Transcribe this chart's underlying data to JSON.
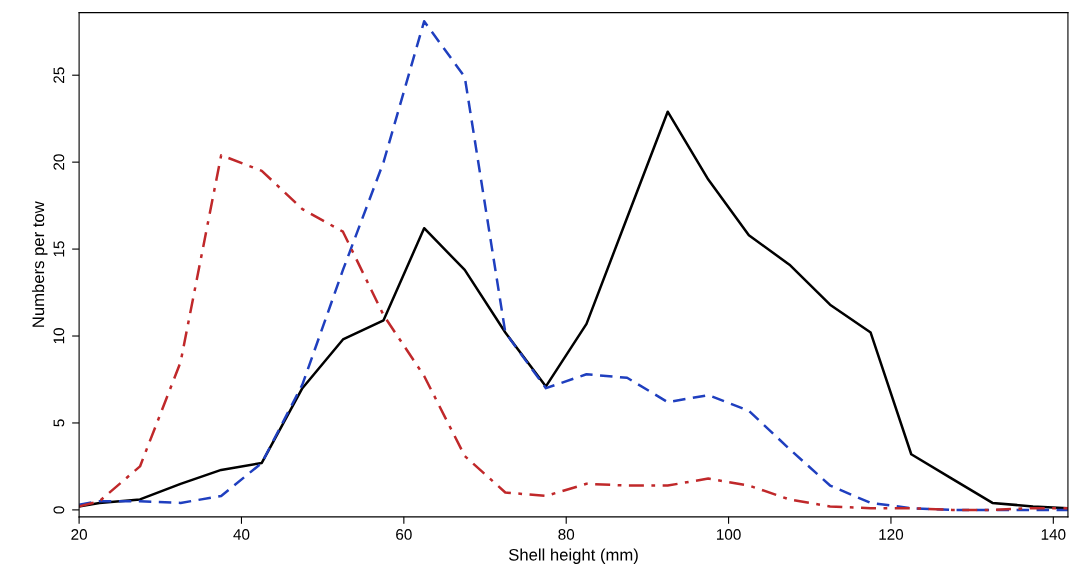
{
  "chart_data": {
    "type": "line",
    "xlabel": "Shell height (mm)",
    "ylabel": "Numbers per tow",
    "xlim": [
      20,
      141.8
    ],
    "ylim": [
      -0.4,
      28.6
    ],
    "xticks": [
      20,
      40,
      60,
      80,
      100,
      120,
      140
    ],
    "yticks": [
      0,
      5,
      10,
      15,
      20,
      25
    ],
    "series": [
      {
        "color": "#000000",
        "line_style": "solid",
        "x": [
          20,
          22.5,
          27.5,
          32.5,
          37.5,
          42.5,
          47.5,
          52.5,
          57.5,
          62.5,
          67.5,
          72.5,
          77.5,
          82.5,
          87.5,
          92.5,
          97.5,
          102.5,
          107.5,
          112.5,
          117.5,
          122.5,
          127.5,
          132.5,
          137.5,
          141.8
        ],
        "values": [
          0.2,
          0.4,
          0.6,
          1.5,
          2.3,
          2.7,
          7.0,
          9.8,
          10.9,
          16.2,
          13.8,
          10.2,
          7.1,
          10.7,
          16.8,
          22.9,
          19.0,
          15.8,
          14.1,
          11.8,
          10.2,
          3.2,
          1.8,
          0.4,
          0.2,
          0.1
        ]
      },
      {
        "color": "#1f3fbf",
        "line_style": "dashed",
        "x": [
          20,
          22.5,
          27.5,
          32.5,
          37.5,
          42.5,
          47.5,
          52.5,
          57.5,
          62.5,
          67.5,
          72.5,
          77.5,
          82.5,
          87.5,
          92.5,
          97.5,
          102.5,
          107.5,
          112.5,
          117.5,
          122.5,
          127.5,
          132.5,
          137.5,
          141.8
        ],
        "values": [
          0.3,
          0.5,
          0.5,
          0.4,
          0.8,
          2.7,
          7.2,
          13.8,
          20.0,
          28.1,
          24.9,
          10.2,
          7.0,
          7.8,
          7.6,
          6.2,
          6.6,
          5.7,
          3.5,
          1.4,
          0.4,
          0.1,
          0.0,
          0.0,
          0.0,
          0.0
        ]
      },
      {
        "color": "#c0282a",
        "line_style": "dashdot",
        "x": [
          20,
          22.5,
          27.5,
          32.5,
          37.5,
          42.5,
          47.5,
          52.5,
          57.5,
          62.5,
          67.5,
          72.5,
          77.5,
          82.5,
          87.5,
          92.5,
          97.5,
          102.5,
          107.5,
          112.5,
          117.5,
          122.5,
          127.5,
          132.5,
          137.5,
          141.8
        ],
        "values": [
          0.2,
          0.5,
          2.5,
          8.5,
          20.4,
          19.5,
          17.3,
          16.0,
          11.2,
          7.7,
          3.1,
          1.0,
          0.8,
          1.5,
          1.4,
          1.4,
          1.8,
          1.4,
          0.6,
          0.2,
          0.1,
          0.1,
          0.0,
          0.0,
          0.1,
          0.1
        ]
      }
    ]
  }
}
